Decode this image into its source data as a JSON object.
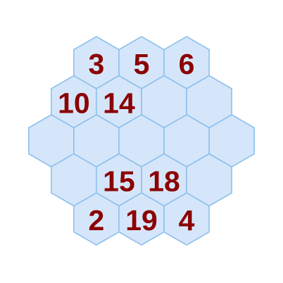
{
  "puzzle": {
    "rows": [
      [
        "3",
        "5",
        "6"
      ],
      [
        "10",
        "14",
        "",
        ""
      ],
      [
        "",
        "",
        "",
        "",
        ""
      ],
      [
        "",
        "15",
        "18",
        ""
      ],
      [
        "2",
        "19",
        "4"
      ]
    ],
    "colors": {
      "cell_fill": "#d6e6fa",
      "cell_border": "#8ec1ec",
      "number": "#8b0000",
      "background": "#ffffff"
    }
  }
}
